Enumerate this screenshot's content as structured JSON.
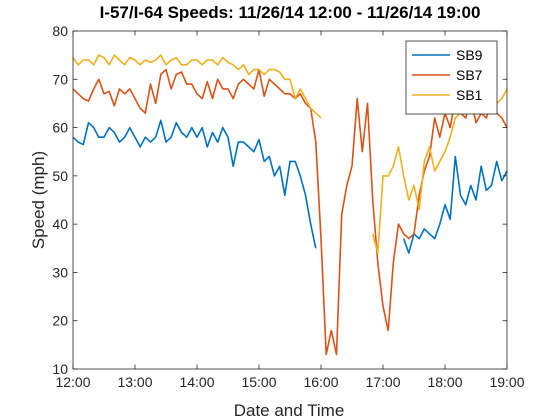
{
  "chart_data": {
    "type": "line",
    "title": "I-57/I-64 Speeds:  11/26/14 12:00 - 11/26/14 19:00",
    "xlabel": "Date and Time",
    "ylabel": "Speed (mph)",
    "xlim": [
      "12:00",
      "19:00"
    ],
    "ylim": [
      10,
      80
    ],
    "x_ticks": [
      "12:00",
      "13:00",
      "14:00",
      "15:00",
      "16:00",
      "17:00",
      "18:00",
      "19:00"
    ],
    "y_ticks": [
      10,
      20,
      30,
      40,
      50,
      60,
      70,
      80
    ],
    "grid": false,
    "legend_position": "top-right",
    "series": [
      {
        "name": "SB9",
        "color": "#0072BD",
        "x": [
          "12:00",
          "12:05",
          "12:10",
          "12:15",
          "12:20",
          "12:25",
          "12:30",
          "12:35",
          "12:40",
          "12:45",
          "12:50",
          "12:55",
          "13:00",
          "13:05",
          "13:10",
          "13:15",
          "13:20",
          "13:25",
          "13:30",
          "13:35",
          "13:40",
          "13:45",
          "13:50",
          "13:55",
          "14:00",
          "14:05",
          "14:10",
          "14:15",
          "14:20",
          "14:25",
          "14:30",
          "14:35",
          "14:40",
          "14:45",
          "14:50",
          "14:55",
          "15:00",
          "15:05",
          "15:10",
          "15:15",
          "15:20",
          "15:25",
          "15:30",
          "15:35",
          "15:40",
          "15:45",
          "15:50",
          "15:55",
          "16:00",
          null,
          "17:20",
          "17:25",
          "17:30",
          "17:35",
          "17:40",
          "17:45",
          "17:50",
          "17:55",
          "18:00",
          "18:05",
          "18:10",
          "18:15",
          "18:20",
          "18:25",
          "18:30",
          "18:35",
          "18:40",
          "18:45",
          "18:50",
          "18:55",
          "19:00"
        ],
        "y": [
          58,
          57,
          56.5,
          61,
          60,
          58,
          58,
          60,
          59,
          57,
          58,
          60,
          58,
          56,
          58,
          57,
          58,
          61.5,
          57,
          58,
          61,
          59,
          58,
          60,
          58,
          60,
          56,
          59,
          57,
          60,
          58,
          52,
          57,
          57,
          56,
          55,
          57.5,
          53,
          54,
          50,
          52,
          46,
          53,
          53,
          50,
          46,
          40,
          35,
          null,
          null,
          37,
          34,
          38,
          37,
          39,
          38,
          37,
          40,
          44,
          41,
          54,
          46,
          44,
          48,
          45,
          52,
          47,
          48,
          53,
          49,
          51
        ]
      },
      {
        "name": "SB7",
        "color": "#D95319",
        "x": [
          "12:00",
          "12:05",
          "12:10",
          "12:15",
          "12:20",
          "12:25",
          "12:30",
          "12:35",
          "12:40",
          "12:45",
          "12:50",
          "12:55",
          "13:00",
          "13:05",
          "13:10",
          "13:15",
          "13:20",
          "13:25",
          "13:30",
          "13:35",
          "13:40",
          "13:45",
          "13:50",
          "13:55",
          "14:00",
          "14:05",
          "14:10",
          "14:15",
          "14:20",
          "14:25",
          "14:30",
          "14:35",
          "14:40",
          "14:45",
          "14:50",
          "14:55",
          "15:00",
          "15:05",
          "15:10",
          "15:15",
          "15:20",
          "15:25",
          "15:30",
          "15:35",
          "15:40",
          "15:45",
          "15:50",
          "15:55",
          "16:00",
          "16:05",
          "16:10",
          "16:15",
          "16:20",
          "16:25",
          "16:30",
          "16:35",
          "16:40",
          "16:45",
          "16:50",
          "16:55",
          "17:00",
          "17:05",
          "17:10",
          "17:15",
          "17:20",
          "17:25",
          "17:30",
          "17:35",
          "17:40",
          "17:45",
          "17:50",
          "17:55",
          "18:00",
          "18:05",
          "18:10",
          "18:15",
          "18:20",
          "18:25",
          "18:30",
          "18:35",
          "18:40",
          "18:45",
          "18:50",
          "18:55",
          "19:00"
        ],
        "y": [
          68,
          67,
          66,
          65.5,
          68,
          70,
          67,
          67.5,
          64.5,
          68,
          67,
          68,
          66,
          64,
          63,
          69,
          65,
          71,
          72,
          68,
          71,
          71.5,
          69,
          69,
          67,
          66,
          69.5,
          66,
          70,
          68,
          68,
          66,
          69,
          70,
          69,
          68,
          72,
          66.5,
          70,
          69,
          68,
          67,
          67,
          66,
          67,
          65,
          64,
          57,
          37,
          13,
          18,
          13,
          42,
          48,
          52,
          66,
          55,
          65,
          45,
          32,
          23,
          18,
          32,
          40,
          38,
          37,
          38,
          46,
          51,
          54,
          62,
          58,
          63,
          60,
          66,
          63,
          62,
          66,
          61,
          63,
          62,
          65,
          63,
          62,
          60
        ]
      },
      {
        "name": "SB1",
        "color": "#EDB120",
        "x": [
          "12:00",
          "12:05",
          "12:10",
          "12:15",
          "12:20",
          "12:25",
          "12:30",
          "12:35",
          "12:40",
          "12:45",
          "12:50",
          "12:55",
          "13:00",
          "13:05",
          "13:10",
          "13:15",
          "13:20",
          "13:25",
          "13:30",
          "13:35",
          "13:40",
          "13:45",
          "13:50",
          "13:55",
          "14:00",
          "14:05",
          "14:10",
          "14:15",
          "14:20",
          "14:25",
          "14:30",
          "14:35",
          "14:40",
          "14:45",
          "14:50",
          "14:55",
          "15:00",
          "15:05",
          "15:10",
          "15:15",
          "15:20",
          "15:25",
          "15:30",
          "15:35",
          "15:40",
          "15:45",
          "15:50",
          "15:55",
          "16:00",
          null,
          "16:50",
          "16:55",
          "17:00",
          "17:05",
          "17:10",
          "17:15",
          "17:20",
          "17:25",
          "17:30",
          "17:35",
          "17:40",
          "17:45",
          "17:50",
          "17:55",
          "18:00",
          "18:05",
          "18:10",
          "18:15",
          "18:20",
          "18:25",
          "18:30",
          "18:35",
          "18:40",
          "18:45",
          "18:50",
          "18:55",
          "19:00"
        ],
        "y": [
          74.5,
          73,
          74,
          74,
          73,
          75,
          74.5,
          73,
          75,
          74,
          73,
          74.5,
          74,
          73,
          74,
          73.5,
          74,
          75,
          73,
          74,
          74.5,
          73,
          73,
          74,
          74,
          73,
          74,
          74,
          73,
          74.5,
          73.5,
          73,
          72,
          73,
          71,
          72,
          72,
          71,
          72,
          72,
          71.5,
          70,
          70,
          66,
          68,
          66,
          64,
          63,
          62,
          null,
          38,
          34,
          50,
          50,
          52,
          56,
          50,
          45,
          48,
          43,
          53,
          56,
          51,
          53,
          55,
          58,
          62,
          63,
          63,
          64,
          64,
          66,
          64,
          66,
          65,
          66,
          68
        ]
      }
    ]
  }
}
